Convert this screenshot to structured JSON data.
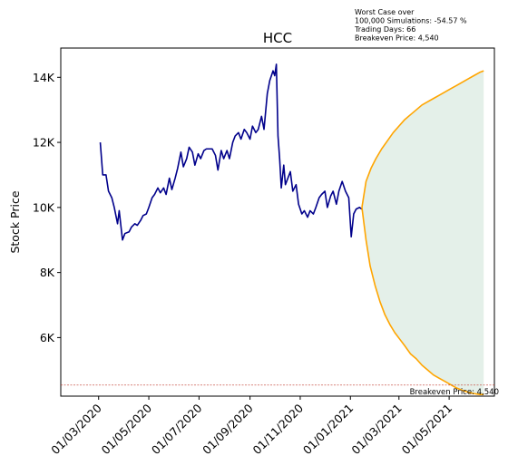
{
  "chart_data": {
    "type": "line",
    "title": "HCC",
    "ylabel": "Stock Price",
    "xlabel": "",
    "annotation_lines": [
      "Worst Case over",
      "100,000 Simulations: -54.57 %",
      "Trading Days: 66",
      "Breakeven Price: 4,540"
    ],
    "breakeven": {
      "value": 4540,
      "label": "Breakeven Price: 4,540",
      "color": "#c0392b"
    },
    "ylim": [
      4200,
      14900
    ],
    "y_ticks": [
      {
        "value": 6000,
        "label": "6K"
      },
      {
        "value": 8000,
        "label": "8K"
      },
      {
        "value": 10000,
        "label": "10K"
      },
      {
        "value": 12000,
        "label": "12K"
      },
      {
        "value": 14000,
        "label": "14K"
      }
    ],
    "x_ticks": [
      {
        "date": "2020-03-01",
        "label": "01/03/2020"
      },
      {
        "date": "2020-05-01",
        "label": "01/05/2020"
      },
      {
        "date": "2020-07-01",
        "label": "01/07/2020"
      },
      {
        "date": "2020-09-01",
        "label": "01/09/2020"
      },
      {
        "date": "2020-11-01",
        "label": "01/11/2020"
      },
      {
        "date": "2021-01-01",
        "label": "01/01/2021"
      },
      {
        "date": "2021-03-01",
        "label": "01/03/2021"
      },
      {
        "date": "2021-05-01",
        "label": "01/05/2021"
      }
    ],
    "xlim": [
      "2020-01-15",
      "2021-06-25"
    ],
    "grid": false,
    "series": [
      {
        "color": "#00008b",
        "points": [
          [
            "2020-03-03",
            12000
          ],
          [
            "2020-03-06",
            11000
          ],
          [
            "2020-03-10",
            11000
          ],
          [
            "2020-03-13",
            10500
          ],
          [
            "2020-03-17",
            10300
          ],
          [
            "2020-03-20",
            10000
          ],
          [
            "2020-03-24",
            9500
          ],
          [
            "2020-03-26",
            9900
          ],
          [
            "2020-03-30",
            9000
          ],
          [
            "2020-04-02",
            9200
          ],
          [
            "2020-04-07",
            9250
          ],
          [
            "2020-04-10",
            9400
          ],
          [
            "2020-04-14",
            9500
          ],
          [
            "2020-04-17",
            9450
          ],
          [
            "2020-04-21",
            9600
          ],
          [
            "2020-04-24",
            9750
          ],
          [
            "2020-04-28",
            9800
          ],
          [
            "2020-05-01",
            10000
          ],
          [
            "2020-05-05",
            10300
          ],
          [
            "2020-05-08",
            10400
          ],
          [
            "2020-05-12",
            10600
          ],
          [
            "2020-05-15",
            10450
          ],
          [
            "2020-05-19",
            10600
          ],
          [
            "2020-05-22",
            10400
          ],
          [
            "2020-05-26",
            10900
          ],
          [
            "2020-05-29",
            10550
          ],
          [
            "2020-06-02",
            10900
          ],
          [
            "2020-06-05",
            11200
          ],
          [
            "2020-06-09",
            11700
          ],
          [
            "2020-06-12",
            11250
          ],
          [
            "2020-06-16",
            11500
          ],
          [
            "2020-06-19",
            11850
          ],
          [
            "2020-06-23",
            11700
          ],
          [
            "2020-06-26",
            11300
          ],
          [
            "2020-06-30",
            11650
          ],
          [
            "2020-07-03",
            11500
          ],
          [
            "2020-07-07",
            11750
          ],
          [
            "2020-07-10",
            11800
          ],
          [
            "2020-07-14",
            11800
          ],
          [
            "2020-07-17",
            11800
          ],
          [
            "2020-07-21",
            11600
          ],
          [
            "2020-07-24",
            11150
          ],
          [
            "2020-07-28",
            11750
          ],
          [
            "2020-07-31",
            11500
          ],
          [
            "2020-08-04",
            11750
          ],
          [
            "2020-08-07",
            11500
          ],
          [
            "2020-08-11",
            12000
          ],
          [
            "2020-08-14",
            12200
          ],
          [
            "2020-08-18",
            12300
          ],
          [
            "2020-08-21",
            12100
          ],
          [
            "2020-08-25",
            12400
          ],
          [
            "2020-08-28",
            12300
          ],
          [
            "2020-09-01",
            12100
          ],
          [
            "2020-09-04",
            12500
          ],
          [
            "2020-09-08",
            12300
          ],
          [
            "2020-09-11",
            12400
          ],
          [
            "2020-09-15",
            12800
          ],
          [
            "2020-09-18",
            12400
          ],
          [
            "2020-09-22",
            13500
          ],
          [
            "2020-09-25",
            13900
          ],
          [
            "2020-09-29",
            14200
          ],
          [
            "2020-10-01",
            14050
          ],
          [
            "2020-10-03",
            14400
          ],
          [
            "2020-10-05",
            12200
          ],
          [
            "2020-10-07",
            11500
          ],
          [
            "2020-10-09",
            10600
          ],
          [
            "2020-10-12",
            11300
          ],
          [
            "2020-10-14",
            10700
          ],
          [
            "2020-10-17",
            10900
          ],
          [
            "2020-10-20",
            11100
          ],
          [
            "2020-10-23",
            10500
          ],
          [
            "2020-10-27",
            10700
          ],
          [
            "2020-10-30",
            10100
          ],
          [
            "2020-11-03",
            9800
          ],
          [
            "2020-11-06",
            9900
          ],
          [
            "2020-11-10",
            9700
          ],
          [
            "2020-11-13",
            9900
          ],
          [
            "2020-11-17",
            9800
          ],
          [
            "2020-11-20",
            10000
          ],
          [
            "2020-11-24",
            10300
          ],
          [
            "2020-11-27",
            10400
          ],
          [
            "2020-12-01",
            10500
          ],
          [
            "2020-12-04",
            10000
          ],
          [
            "2020-12-08",
            10350
          ],
          [
            "2020-12-11",
            10500
          ],
          [
            "2020-12-15",
            10100
          ],
          [
            "2020-12-18",
            10500
          ],
          [
            "2020-12-22",
            10800
          ],
          [
            "2020-12-26",
            10500
          ],
          [
            "2020-12-30",
            10300
          ],
          [
            "2021-01-02",
            9100
          ],
          [
            "2021-01-05",
            9800
          ],
          [
            "2021-01-08",
            9950
          ],
          [
            "2021-01-12",
            10000
          ],
          [
            "2021-01-15",
            9950
          ]
        ]
      },
      {
        "color": "#ffa500",
        "points": [
          [
            "2021-01-15",
            10000
          ],
          [
            "2021-01-20",
            10800
          ],
          [
            "2021-01-26",
            11200
          ],
          [
            "2021-02-01",
            11500
          ],
          [
            "2021-02-08",
            11800
          ],
          [
            "2021-02-15",
            12050
          ],
          [
            "2021-02-22",
            12300
          ],
          [
            "2021-03-01",
            12500
          ],
          [
            "2021-03-08",
            12700
          ],
          [
            "2021-03-15",
            12850
          ],
          [
            "2021-03-22",
            13000
          ],
          [
            "2021-03-29",
            13150
          ],
          [
            "2021-04-05",
            13250
          ],
          [
            "2021-04-12",
            13350
          ],
          [
            "2021-04-19",
            13450
          ],
          [
            "2021-04-26",
            13550
          ],
          [
            "2021-05-03",
            13650
          ],
          [
            "2021-05-10",
            13750
          ],
          [
            "2021-05-17",
            13850
          ],
          [
            "2021-05-24",
            13950
          ],
          [
            "2021-05-31",
            14050
          ],
          [
            "2021-06-07",
            14150
          ],
          [
            "2021-06-12",
            14200
          ]
        ]
      },
      {
        "color": "#ffa500",
        "points": [
          [
            "2021-01-15",
            10000
          ],
          [
            "2021-01-20",
            9000
          ],
          [
            "2021-01-25",
            8200
          ],
          [
            "2021-01-31",
            7600
          ],
          [
            "2021-02-06",
            7100
          ],
          [
            "2021-02-12",
            6700
          ],
          [
            "2021-02-18",
            6400
          ],
          [
            "2021-02-24",
            6150
          ],
          [
            "2021-03-02",
            5950
          ],
          [
            "2021-03-08",
            5750
          ],
          [
            "2021-03-15",
            5500
          ],
          [
            "2021-03-22",
            5350
          ],
          [
            "2021-03-29",
            5150
          ],
          [
            "2021-04-05",
            5000
          ],
          [
            "2021-04-12",
            4850
          ],
          [
            "2021-04-19",
            4750
          ],
          [
            "2021-04-26",
            4650
          ],
          [
            "2021-05-03",
            4550
          ],
          [
            "2021-05-10",
            4450
          ],
          [
            "2021-05-17",
            4380
          ],
          [
            "2021-05-24",
            4320
          ],
          [
            "2021-05-31",
            4280
          ],
          [
            "2021-06-07",
            4250
          ],
          [
            "2021-06-12",
            4250
          ]
        ]
      }
    ],
    "fill_between": {
      "upper_series": 1,
      "lower_series": 2,
      "color": "#2e8b57",
      "opacity": 0.13
    }
  }
}
